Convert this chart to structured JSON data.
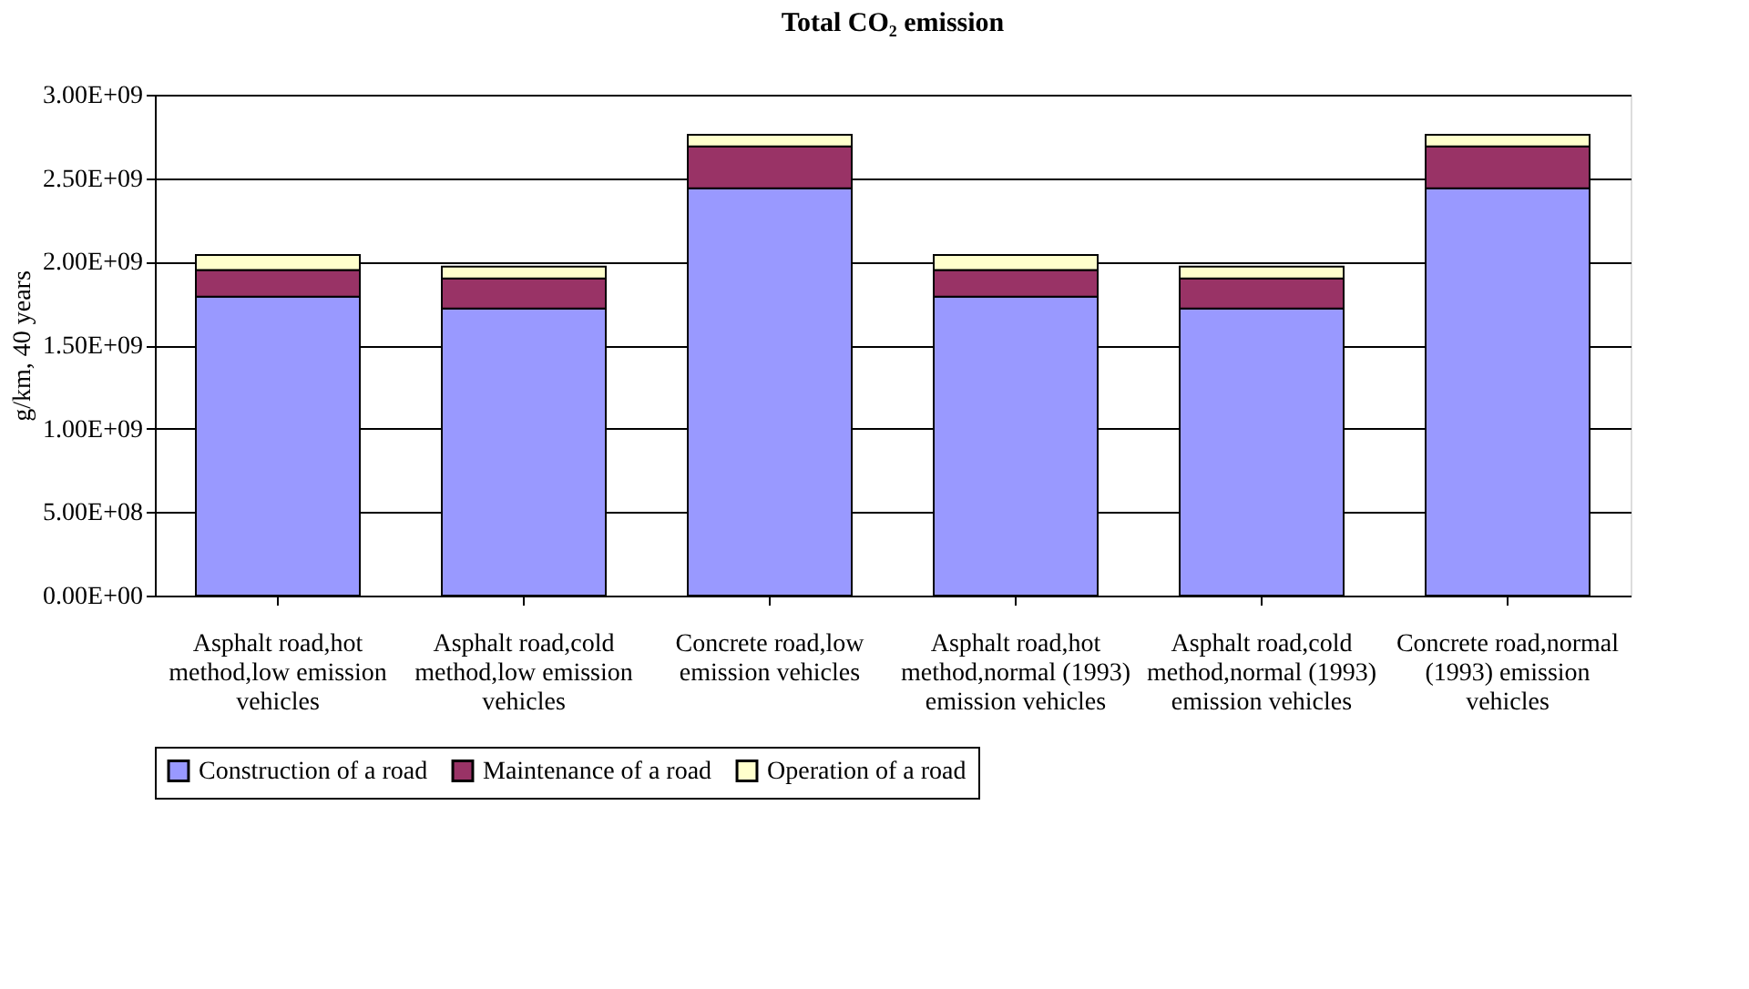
{
  "chart_data": {
    "type": "bar",
    "title": "Total CO₂ emission",
    "ylabel": "g/km, 40 years",
    "categories": [
      "Asphalt road,hot method,low emission vehicles",
      "Asphalt road,cold method,low emission vehicles",
      "Concrete road,low emission vehicles",
      "Asphalt road,hot method,normal (1993) emission vehicles",
      "Asphalt road,cold method,normal (1993) emission vehicles",
      "Concrete road,normal (1993) emission vehicles"
    ],
    "stacked": true,
    "series": [
      {
        "name": "Construction of a road",
        "color": "#9999ff",
        "values": [
          1790000000,
          1720000000,
          2440000000,
          1790000000,
          1720000000,
          2440000000
        ]
      },
      {
        "name": "Maintenance of a road",
        "color": "#993366",
        "values": [
          160000000,
          180000000,
          250000000,
          160000000,
          180000000,
          250000000
        ]
      },
      {
        "name": "Operation of a road",
        "color": "#ffffcc",
        "values": [
          90000000,
          70000000,
          70000000,
          90000000,
          70000000,
          70000000
        ]
      }
    ],
    "ylim": [
      0,
      3000000000
    ],
    "yticks": [
      {
        "value": 0,
        "label": "0.00E+00"
      },
      {
        "value": 500000000,
        "label": "5.00E+08"
      },
      {
        "value": 1000000000,
        "label": "1.00E+09"
      },
      {
        "value": 1500000000,
        "label": "1.50E+09"
      },
      {
        "value": 2000000000,
        "label": "2.00E+09"
      },
      {
        "value": 2500000000,
        "label": "2.50E+09"
      },
      {
        "value": 3000000000,
        "label": "3.00E+09"
      }
    ],
    "grid": "y",
    "legend": "bottom"
  }
}
